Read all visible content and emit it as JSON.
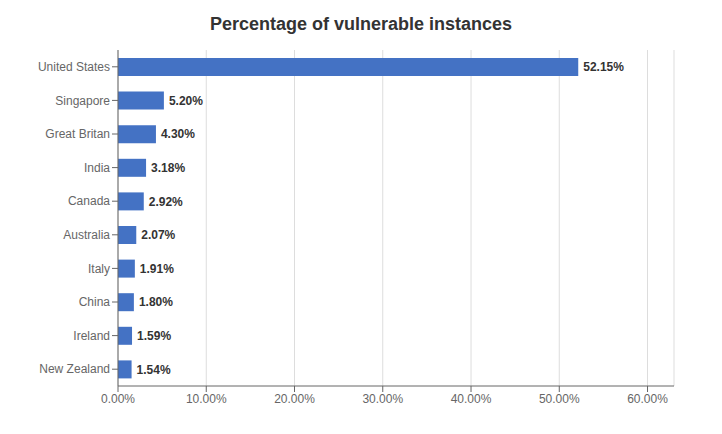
{
  "chart_data": {
    "type": "bar",
    "title": "Percentage of vulnerable instances",
    "orientation": "horizontal",
    "categories": [
      "United States",
      "Singapore",
      "Great Britan",
      "India",
      "Canada",
      "Australia",
      "Italy",
      "China",
      "Ireland",
      "New Zealand"
    ],
    "values": [
      52.15,
      5.2,
      4.3,
      3.18,
      2.92,
      2.07,
      1.91,
      1.8,
      1.59,
      1.54
    ],
    "value_labels": [
      "52.15%",
      "5.20%",
      "4.30%",
      "3.18%",
      "2.92%",
      "2.07%",
      "1.91%",
      "1.80%",
      "1.59%",
      "1.54%"
    ],
    "data_labels": true,
    "color": "#4472C4",
    "xlim": [
      0,
      63
    ],
    "xticks": [
      {
        "value": 0,
        "label": "0.00%"
      },
      {
        "value": 10,
        "label": "10.00%"
      },
      {
        "value": 20,
        "label": "20.00%"
      },
      {
        "value": 30,
        "label": "30.00%"
      },
      {
        "value": 40,
        "label": "40.00%"
      },
      {
        "value": 50,
        "label": "50.00%"
      },
      {
        "value": 60,
        "label": "60.00%"
      }
    ],
    "grid": true
  }
}
